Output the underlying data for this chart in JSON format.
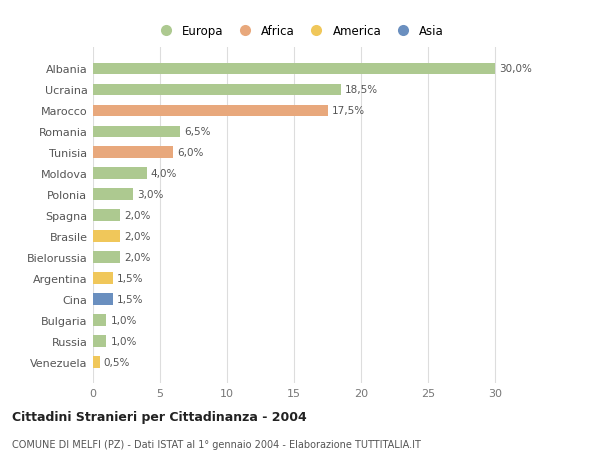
{
  "countries": [
    "Albania",
    "Ucraina",
    "Marocco",
    "Romania",
    "Tunisia",
    "Moldova",
    "Polonia",
    "Spagna",
    "Brasile",
    "Bielorussia",
    "Argentina",
    "Cina",
    "Bulgaria",
    "Russia",
    "Venezuela"
  ],
  "values": [
    30.0,
    18.5,
    17.5,
    6.5,
    6.0,
    4.0,
    3.0,
    2.0,
    2.0,
    2.0,
    1.5,
    1.5,
    1.0,
    1.0,
    0.5
  ],
  "continents": [
    "Europa",
    "Europa",
    "Africa",
    "Europa",
    "Africa",
    "Europa",
    "Europa",
    "Europa",
    "America",
    "Europa",
    "America",
    "Asia",
    "Europa",
    "Europa",
    "America"
  ],
  "colors": {
    "Europa": "#adc990",
    "Africa": "#e8a87c",
    "America": "#f0c75a",
    "Asia": "#6a8fbf"
  },
  "labels": [
    "30,0%",
    "18,5%",
    "17,5%",
    "6,5%",
    "6,0%",
    "4,0%",
    "3,0%",
    "2,0%",
    "2,0%",
    "2,0%",
    "1,5%",
    "1,5%",
    "1,0%",
    "1,0%",
    "0,5%"
  ],
  "title": "Cittadini Stranieri per Cittadinanza - 2004",
  "subtitle": "COMUNE DI MELFI (PZ) - Dati ISTAT al 1° gennaio 2004 - Elaborazione TUTTITALIA.IT",
  "xlim": [
    0,
    32
  ],
  "xticks": [
    0,
    5,
    10,
    15,
    20,
    25,
    30
  ],
  "legend_order": [
    "Europa",
    "Africa",
    "America",
    "Asia"
  ],
  "background_color": "#ffffff",
  "bar_height": 0.55
}
